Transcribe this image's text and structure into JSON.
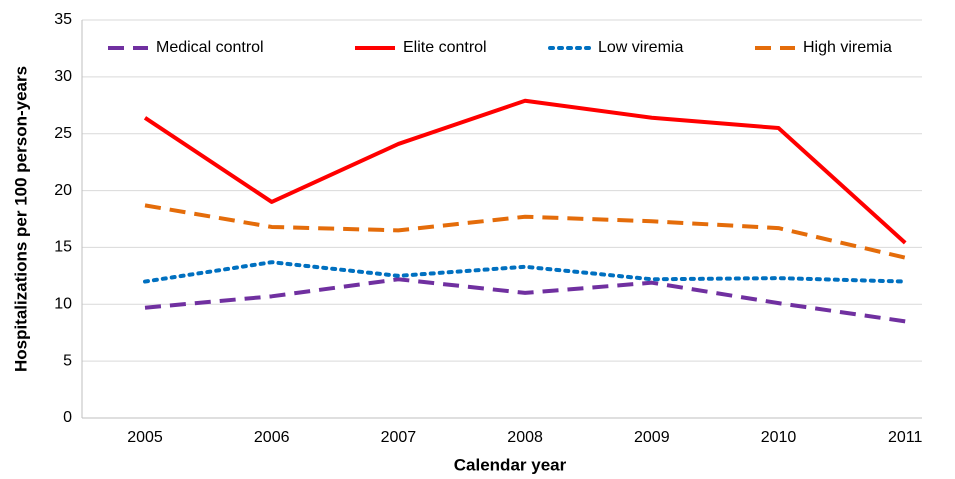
{
  "chart_data": {
    "type": "line",
    "xlabel": "Calendar year",
    "ylabel": "Hospitalizations per 100 person-years",
    "categories": [
      "2005",
      "2006",
      "2007",
      "2008",
      "2009",
      "2010",
      "2011"
    ],
    "series": [
      {
        "name": "Medical control",
        "color": "#7030a0",
        "style": "dashed",
        "values": [
          9.7,
          10.7,
          12.2,
          11.0,
          11.9,
          10.1,
          8.5
        ]
      },
      {
        "name": "Elite control",
        "color": "#ff0000",
        "style": "solid",
        "values": [
          26.4,
          19.0,
          24.1,
          27.9,
          26.4,
          25.5,
          15.4
        ]
      },
      {
        "name": "Low viremia",
        "color": "#0070c0",
        "style": "dotted",
        "values": [
          12.0,
          13.7,
          12.5,
          13.3,
          12.2,
          12.3,
          12.0
        ]
      },
      {
        "name": "High viremia",
        "color": "#e46c0a",
        "style": "dashed",
        "values": [
          18.7,
          16.8,
          16.5,
          17.7,
          17.3,
          16.7,
          14.1
        ]
      }
    ],
    "ylim": [
      0,
      35
    ],
    "yticks": [
      0,
      5,
      10,
      15,
      20,
      25,
      30,
      35
    ],
    "grid": true,
    "legend": "top"
  }
}
